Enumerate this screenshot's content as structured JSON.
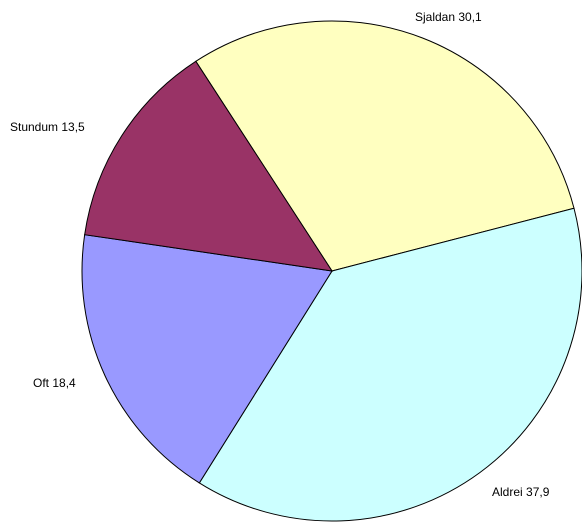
{
  "chart_data": {
    "type": "pie",
    "categories": [
      "Sjaldan",
      "Aldrei",
      "Oft",
      "Stundum"
    ],
    "values": [
      30.1,
      37.9,
      18.4,
      13.5
    ],
    "value_labels": [
      "30,1",
      "37,9",
      "18,4",
      "13,5"
    ],
    "colors": [
      "#ffffc0",
      "#ccffff",
      "#9999ff",
      "#993366"
    ]
  }
}
